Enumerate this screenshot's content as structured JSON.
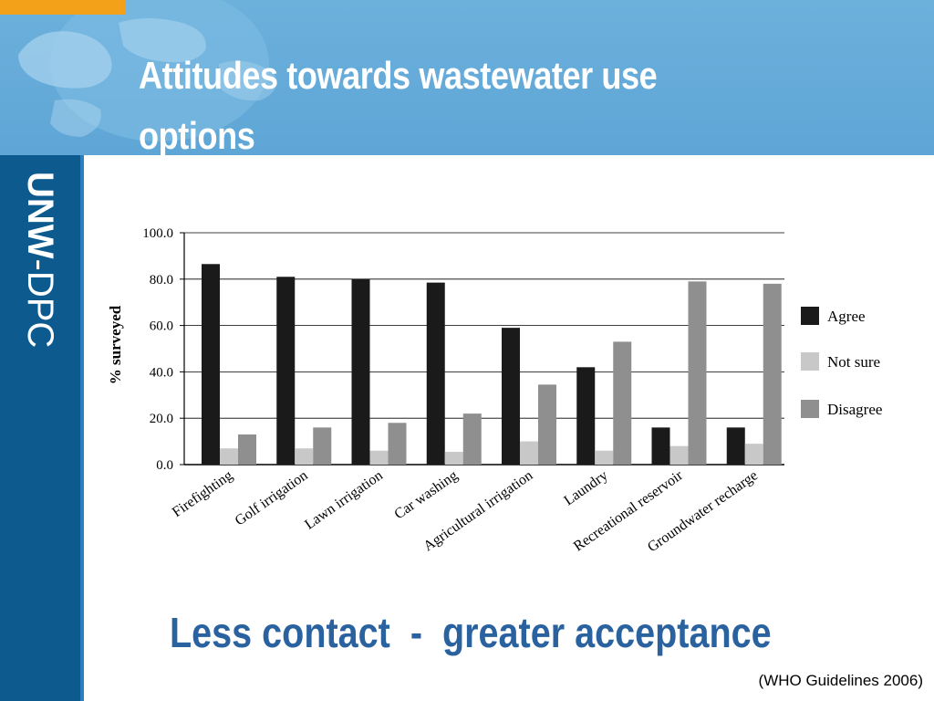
{
  "slide": {
    "title": "Attitudes towards wastewater use options",
    "brand_bold": "UNW",
    "brand_rest": "-DPC",
    "tagline": "Less contact  -  greater acceptance",
    "citation": "(WHO Guidelines 2006)"
  },
  "colors": {
    "header": "#6db0dc",
    "sidebar": "#0d5a8f",
    "accent_orange": "#f4a11a",
    "tagline": "#2a62a0"
  },
  "chart_data": {
    "type": "bar",
    "title": "",
    "xlabel": "",
    "ylabel": "% surveyed",
    "ylim": [
      0,
      100
    ],
    "y_ticks": [
      "0.0",
      "20.0",
      "40.0",
      "60.0",
      "80.0",
      "100.0"
    ],
    "grid": true,
    "legend_position": "right",
    "categories": [
      "Firefighting",
      "Golf irrigation",
      "Lawn irrigation",
      "Car washing",
      "Agricultural irrigation",
      "Laundry",
      "Recreational reservoir",
      "Groundwater recharge"
    ],
    "series": [
      {
        "name": "Agree",
        "color": "#1a1a1a",
        "values": [
          86.5,
          81,
          80,
          78.5,
          59,
          42,
          16,
          16
        ]
      },
      {
        "name": "Not sure",
        "color": "#c8c8c8",
        "values": [
          7,
          7,
          6,
          5.5,
          10,
          6,
          8,
          9
        ]
      },
      {
        "name": "Disagree",
        "color": "#8f8f8f",
        "values": [
          13,
          16,
          18,
          22,
          34.5,
          53,
          79,
          78
        ]
      }
    ]
  }
}
